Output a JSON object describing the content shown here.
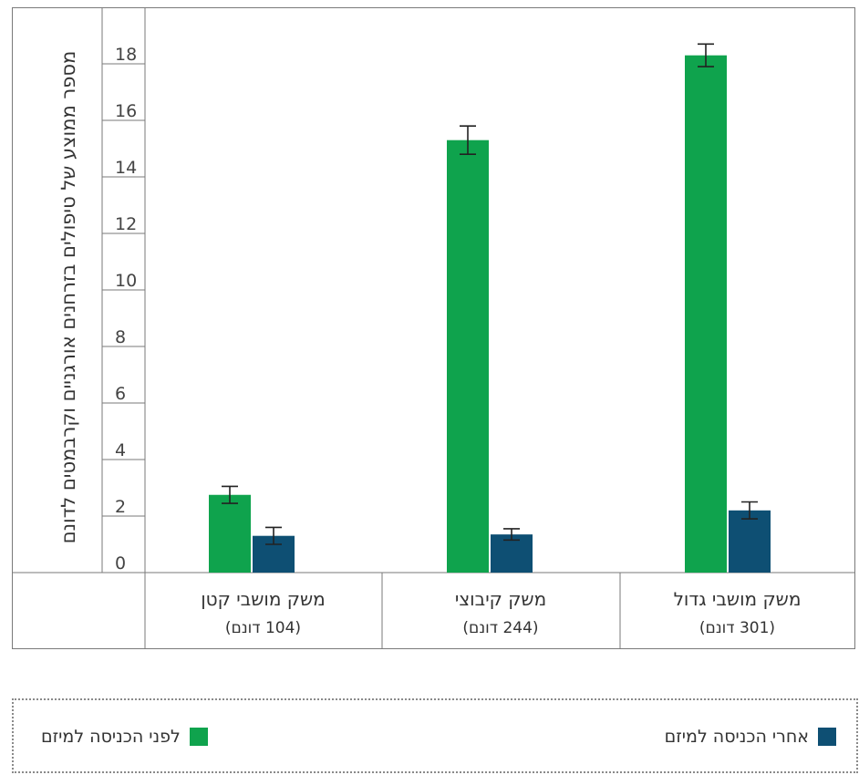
{
  "chart_data": {
    "type": "bar",
    "ylabel": "מספר ממוצע של טיפולים בזרחנים אורגניים וקרבמטים לדונם",
    "ylim": [
      0,
      20
    ],
    "yticks": [
      "0",
      "2",
      "4",
      "6",
      "8",
      "10",
      "12",
      "14",
      "16",
      "18"
    ],
    "grid": false,
    "legend_placement": "bottom",
    "categories": [
      {
        "name": "משק מושבי קטן",
        "sub": "(104 דונם)"
      },
      {
        "name": "משק קיבוצי",
        "sub": "(244 דונם)"
      },
      {
        "name": "משק מושבי גדול",
        "sub": "(301 דונם)"
      }
    ],
    "series": [
      {
        "name": "לפני הכניסה למיזם",
        "color": "#0fa34d",
        "values": [
          2.75,
          15.3,
          18.3
        ],
        "errors": [
          0.3,
          0.5,
          0.4
        ]
      },
      {
        "name": "אחרי הכניסה למיזם",
        "color": "#0e4f73",
        "values": [
          1.3,
          1.35,
          2.2
        ],
        "errors": [
          0.3,
          0.2,
          0.3
        ]
      }
    ]
  }
}
